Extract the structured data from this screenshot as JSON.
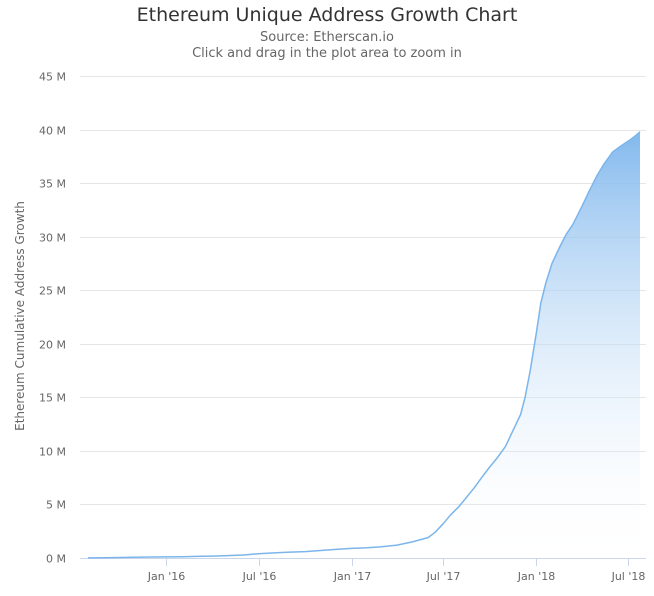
{
  "chart": {
    "title": "Ethereum Unique Address Growth Chart",
    "subtitle_line1": "Source: Etherscan.io",
    "subtitle_line2": "Click and drag in the plot area to zoom in"
  },
  "colors": {
    "line": "#7cb5ec",
    "area_top": "#7cb5ec",
    "grid": "#e6e6e6",
    "axis_text": "#666666"
  },
  "chart_data": {
    "type": "area",
    "title": "Ethereum Unique Address Growth Chart",
    "subtitle": "Source: Etherscan.io",
    "xlabel": "",
    "ylabel": "Ethereum Cumulative Address Growth",
    "y_unit": "M",
    "ylim": [
      0,
      45
    ],
    "xlim": [
      "2015-07-30",
      "2018-07-25"
    ],
    "grid": true,
    "legend": "none",
    "y_ticks": [
      {
        "value": 0,
        "label": "0 M"
      },
      {
        "value": 5,
        "label": "5 M"
      },
      {
        "value": 10,
        "label": "10 M"
      },
      {
        "value": 15,
        "label": "15 M"
      },
      {
        "value": 20,
        "label": "20 M"
      },
      {
        "value": 25,
        "label": "25 M"
      },
      {
        "value": 30,
        "label": "30 M"
      },
      {
        "value": 35,
        "label": "35 M"
      },
      {
        "value": 40,
        "label": "40 M"
      },
      {
        "value": 45,
        "label": "45 M"
      }
    ],
    "x_ticks": [
      {
        "value": "2016-01-01",
        "label": "Jan '16"
      },
      {
        "value": "2016-07-01",
        "label": "Jul '16"
      },
      {
        "value": "2017-01-01",
        "label": "Jan '17"
      },
      {
        "value": "2017-07-01",
        "label": "Jul '17"
      },
      {
        "value": "2018-01-01",
        "label": "Jan '18"
      },
      {
        "value": "2018-07-01",
        "label": "Jul '18"
      }
    ],
    "x": [
      "2015-07-30",
      "2015-09-01",
      "2015-10-01",
      "2015-11-01",
      "2015-12-01",
      "2016-01-01",
      "2016-02-01",
      "2016-03-01",
      "2016-04-01",
      "2016-05-01",
      "2016-06-01",
      "2016-07-01",
      "2016-08-01",
      "2016-09-01",
      "2016-10-01",
      "2016-11-01",
      "2016-12-01",
      "2017-01-01",
      "2017-02-01",
      "2017-03-01",
      "2017-04-01",
      "2017-05-01",
      "2017-06-01",
      "2017-06-15",
      "2017-07-01",
      "2017-07-15",
      "2017-08-01",
      "2017-08-15",
      "2017-09-01",
      "2017-09-15",
      "2017-10-01",
      "2017-10-15",
      "2017-11-01",
      "2017-11-15",
      "2017-12-01",
      "2017-12-10",
      "2017-12-20",
      "2018-01-01",
      "2018-01-10",
      "2018-01-20",
      "2018-02-01",
      "2018-02-15",
      "2018-03-01",
      "2018-03-15",
      "2018-04-01",
      "2018-04-15",
      "2018-05-01",
      "2018-05-15",
      "2018-06-01",
      "2018-06-15",
      "2018-07-01",
      "2018-07-10",
      "2018-07-18",
      "2018-07-25"
    ],
    "y": [
      0.01,
      0.03,
      0.05,
      0.07,
      0.09,
      0.1,
      0.12,
      0.15,
      0.18,
      0.22,
      0.28,
      0.4,
      0.48,
      0.55,
      0.6,
      0.7,
      0.8,
      0.9,
      0.95,
      1.05,
      1.2,
      1.5,
      1.9,
      2.4,
      3.2,
      4.0,
      4.8,
      5.6,
      6.6,
      7.5,
      8.5,
      9.3,
      10.4,
      11.8,
      13.4,
      15.0,
      17.5,
      21.0,
      23.8,
      25.7,
      27.5,
      28.9,
      30.2,
      31.2,
      32.8,
      34.2,
      35.7,
      36.8,
      37.9,
      38.4,
      38.9,
      39.2,
      39.5,
      39.8
    ]
  }
}
